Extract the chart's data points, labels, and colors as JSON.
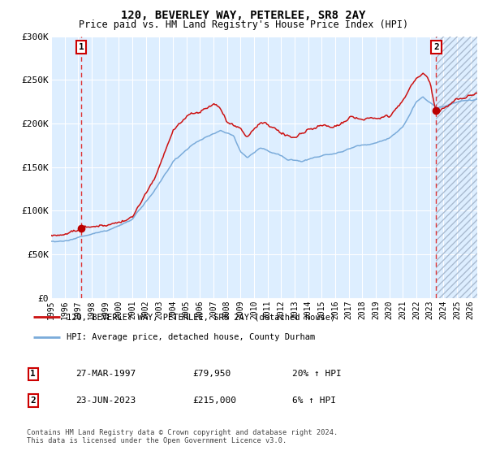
{
  "title": "120, BEVERLEY WAY, PETERLEE, SR8 2AY",
  "subtitle": "Price paid vs. HM Land Registry's House Price Index (HPI)",
  "legend_line1": "120, BEVERLEY WAY, PETERLEE, SR8 2AY (detached house)",
  "legend_line2": "HPI: Average price, detached house, County Durham",
  "sale1_date": "27-MAR-1997",
  "sale1_price": "£79,950",
  "sale1_hpi": "20% ↑ HPI",
  "sale1_year": 1997.23,
  "sale1_value": 79950,
  "sale2_date": "23-JUN-2023",
  "sale2_price": "£215,000",
  "sale2_hpi": "6% ↑ HPI",
  "sale2_year": 2023.47,
  "sale2_value": 215000,
  "hpi_color": "#7aabda",
  "price_color": "#cc1111",
  "dot_color": "#bb0000",
  "vline1_color": "#dd3333",
  "vline2_color": "#dd3333",
  "bg_color": "#ddeeff",
  "hatch_color": "#aabbd0",
  "grid_color": "#ffffff",
  "ylim": [
    0,
    300000
  ],
  "yticks": [
    0,
    50000,
    100000,
    150000,
    200000,
    250000,
    300000
  ],
  "ytick_labels": [
    "£0",
    "£50K",
    "£100K",
    "£150K",
    "£200K",
    "£250K",
    "£300K"
  ],
  "xmin": 1995.0,
  "xmax": 2026.5,
  "footer": "Contains HM Land Registry data © Crown copyright and database right 2024.\nThis data is licensed under the Open Government Licence v3.0."
}
